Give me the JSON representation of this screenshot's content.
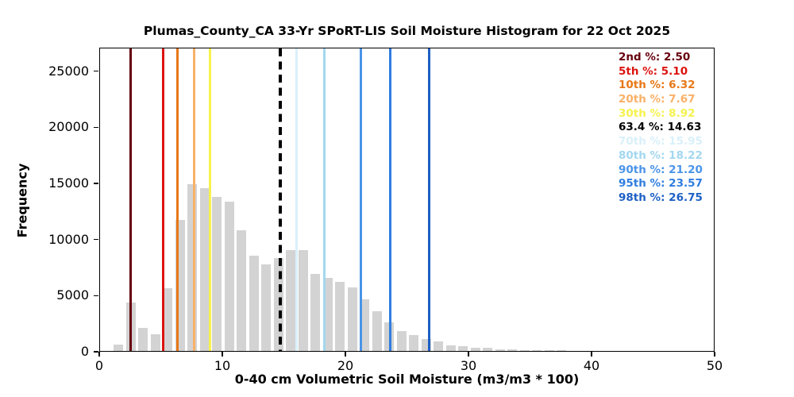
{
  "figure": {
    "title": "Plumas_County_CA 33-Yr SPoRT-LIS Soil Moisture Histogram for 22 Oct 2025",
    "xlabel": "0-40 cm Volumetric Soil Moisture (m3/m3 * 100)",
    "ylabel": "Frequency"
  },
  "chart_data": {
    "type": "bar",
    "subtype": "histogram",
    "title": "Plumas_County_CA 33-Yr SPoRT-LIS Soil Moisture Histogram for 22 Oct 2025",
    "xlabel": "0-40 cm Volumetric Soil Moisture (m3/m3 * 100)",
    "ylabel": "Frequency",
    "grid": false,
    "bar_color": "#d3d3d3",
    "bin_width": 1,
    "bin_starts": [
      1,
      2,
      3,
      4,
      5,
      6,
      7,
      8,
      9,
      10,
      11,
      12,
      13,
      14,
      15,
      16,
      17,
      18,
      19,
      20,
      21,
      22,
      23,
      24,
      25,
      26,
      27,
      28,
      29,
      30,
      31,
      32,
      33,
      34,
      35,
      36,
      37
    ],
    "counts": [
      550,
      4350,
      2050,
      1500,
      5600,
      11650,
      14890,
      14490,
      13700,
      13300,
      10750,
      8470,
      7700,
      8310,
      9010,
      9010,
      6870,
      6510,
      6180,
      5690,
      4580,
      3520,
      2570,
      1790,
      1390,
      1080,
      850,
      510,
      400,
      260,
      260,
      130,
      150,
      60,
      60,
      50,
      40
    ],
    "xlim": [
      0,
      50
    ],
    "ylim": [
      0,
      27100
    ],
    "xticks": [
      0,
      10,
      20,
      30,
      40,
      50
    ],
    "yticks": [
      0,
      5000,
      10000,
      15000,
      20000,
      25000
    ],
    "legend_position": "upper right",
    "percentile_lines": [
      {
        "label": "2nd %",
        "value_display": "2.50",
        "x": 2.5,
        "color": "#67000d",
        "dashed": false
      },
      {
        "label": "5th %",
        "value_display": "5.10",
        "x": 5.1,
        "color": "#dc1410",
        "dashed": false
      },
      {
        "label": "10th %",
        "value_display": "6.32",
        "x": 6.32,
        "color": "#e87818",
        "dashed": false
      },
      {
        "label": "20th %",
        "value_display": "7.67",
        "x": 7.67,
        "color": "#f9b168",
        "dashed": false
      },
      {
        "label": "30th %",
        "value_display": "8.92",
        "x": 8.92,
        "color": "#f6f24e",
        "dashed": false
      },
      {
        "label": "63.4 %",
        "value_display": "14.63",
        "x": 14.63,
        "color": "#000000",
        "dashed": true
      },
      {
        "label": "70th %",
        "value_display": "15.95",
        "x": 15.95,
        "color": "#d9f0f9",
        "dashed": false
      },
      {
        "label": "80th %",
        "value_display": "18.22",
        "x": 18.22,
        "color": "#a3d7ef",
        "dashed": false
      },
      {
        "label": "90th %",
        "value_display": "21.20",
        "x": 21.2,
        "color": "#4a94e8",
        "dashed": false
      },
      {
        "label": "95th %",
        "value_display": "23.57",
        "x": 23.57,
        "color": "#2f7de0",
        "dashed": false
      },
      {
        "label": "98th %",
        "value_display": "26.75",
        "x": 26.75,
        "color": "#1d60c4",
        "dashed": false
      }
    ]
  }
}
